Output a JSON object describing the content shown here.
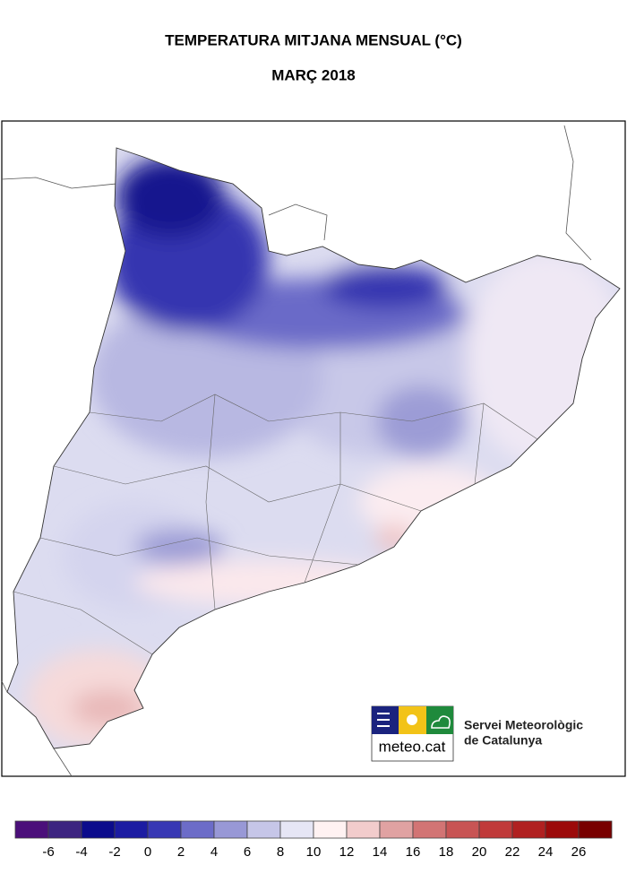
{
  "title": "TEMPERATURA MITJANA MENSUAL (°C)",
  "subtitle": "MARÇ 2018",
  "logo": {
    "name": "meteo.cat",
    "org_line1": "Servei Meteorològic",
    "org_line2": "de Catalunya"
  },
  "legend": {
    "ticks": [
      -6,
      -4,
      -2,
      0,
      2,
      4,
      6,
      8,
      10,
      12,
      14,
      16,
      18,
      20,
      22,
      24,
      26
    ],
    "colors": [
      "#4b0f7a",
      "#3c2480",
      "#0c0c8c",
      "#1c1ca2",
      "#3838b4",
      "#6c6cc8",
      "#9898d6",
      "#c6c6e8",
      "#e6e6f5",
      "#fff2f2",
      "#f2cccc",
      "#e0a2a2",
      "#d27474",
      "#c85454",
      "#c03a3a",
      "#b02020",
      "#9c0a0a",
      "#780000"
    ]
  }
}
